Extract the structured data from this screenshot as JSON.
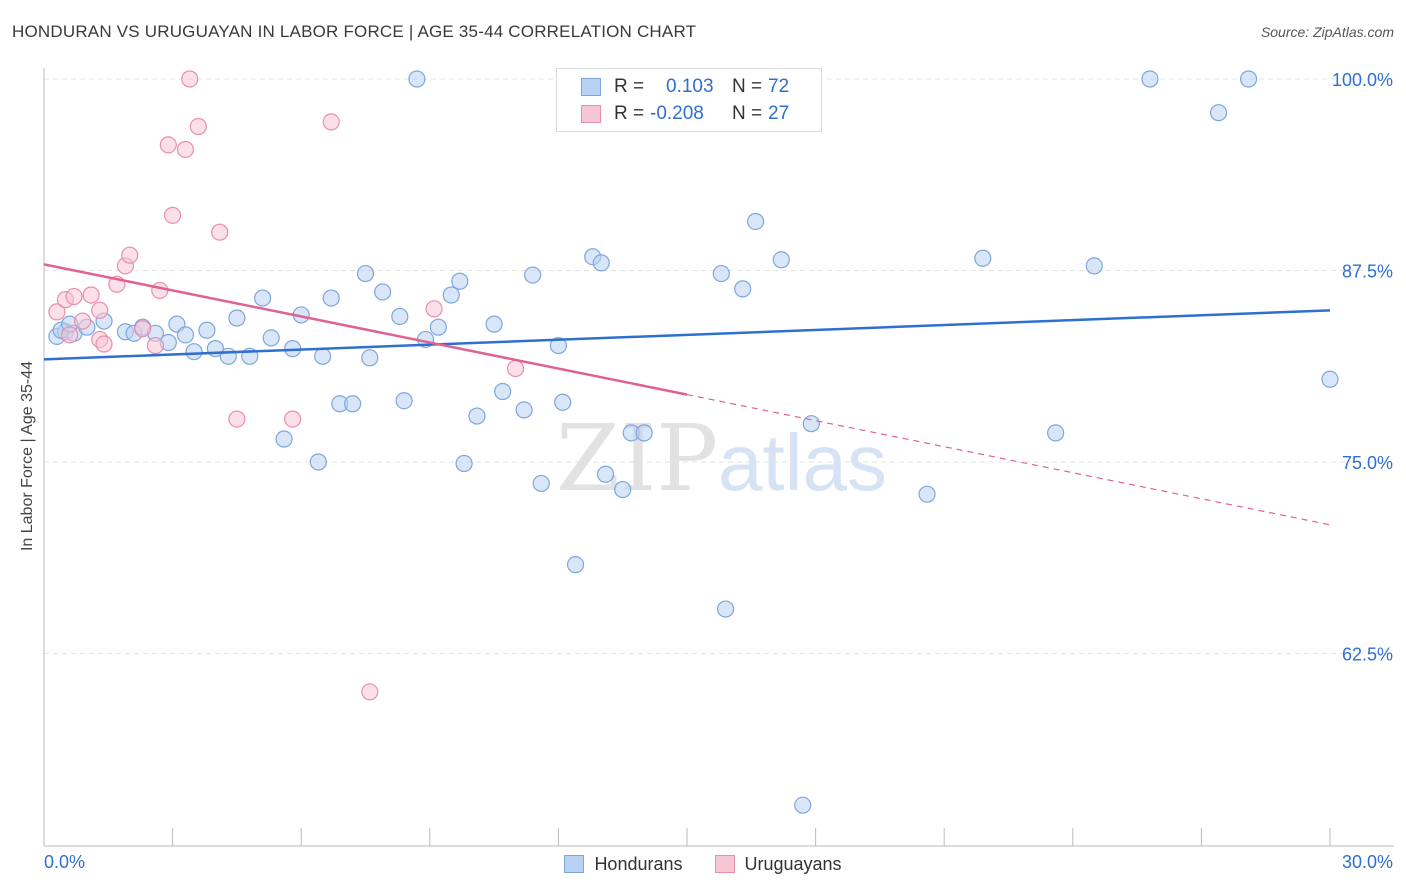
{
  "header": {
    "title": "HONDURAN VS URUGUAYAN IN LABOR FORCE | AGE 35-44 CORRELATION CHART",
    "source": "Source: ZipAtlas.com"
  },
  "watermark": {
    "zip": "ZIP",
    "atlas": "atlas"
  },
  "legend": {
    "rows": [
      {
        "r_label": "R =",
        "r_value": "0.103",
        "n_label": "N =",
        "n_value": "72"
      },
      {
        "r_label": "R =",
        "r_value": "-0.208",
        "n_label": "N =",
        "n_value": "27"
      }
    ]
  },
  "bottom_legend": [
    "Hondurans",
    "Uruguayans"
  ],
  "colors": {
    "blue_fill": "#b9d1f2",
    "blue_stroke": "#7ea6de",
    "blue_line": "#2f6fd0",
    "pink_fill": "#f7c6d5",
    "pink_stroke": "#e98fac",
    "pink_line": "#e0628f",
    "tick_label": "#2f6fd0",
    "grid": "#e3e3e3"
  },
  "chart_data": {
    "type": "scatter",
    "title": "HONDURAN VS URUGUAYAN IN LABOR FORCE | AGE 35-44 CORRELATION CHART",
    "xlabel": "",
    "ylabel": "In Labor Force | Age 35-44",
    "xlim": [
      0,
      30
    ],
    "ylim": [
      50,
      101
    ],
    "x_tick_labels": [
      "0.0%",
      "30.0%"
    ],
    "y_ticks": [
      {
        "value": 62.5,
        "label": "62.5%"
      },
      {
        "value": 75.0,
        "label": "75.0%"
      },
      {
        "value": 87.5,
        "label": "87.5%"
      },
      {
        "value": 100.0,
        "label": "100.0%"
      }
    ],
    "grid": "horizontal dashed",
    "legend_position": "top-center",
    "series": [
      {
        "name": "Hondurans",
        "color": "#b9d1f2",
        "trend": {
          "x": [
            0,
            30
          ],
          "y": [
            81.7,
            84.9
          ],
          "style": "solid"
        },
        "points": [
          [
            0.3,
            83.2
          ],
          [
            0.5,
            83.5
          ],
          [
            0.7,
            83.4
          ],
          [
            1.0,
            83.8
          ],
          [
            1.4,
            84.2
          ],
          [
            1.9,
            83.5
          ],
          [
            2.1,
            83.4
          ],
          [
            2.3,
            83.8
          ],
          [
            2.6,
            83.4
          ],
          [
            2.9,
            82.8
          ],
          [
            3.1,
            84.0
          ],
          [
            3.3,
            83.3
          ],
          [
            3.5,
            82.2
          ],
          [
            3.8,
            83.6
          ],
          [
            4.0,
            82.4
          ],
          [
            4.3,
            81.9
          ],
          [
            4.5,
            84.4
          ],
          [
            4.8,
            81.9
          ],
          [
            5.1,
            85.7
          ],
          [
            5.3,
            83.1
          ],
          [
            5.6,
            76.5
          ],
          [
            5.8,
            82.4
          ],
          [
            6.0,
            84.6
          ],
          [
            6.4,
            75.0
          ],
          [
            6.5,
            81.9
          ],
          [
            6.7,
            85.7
          ],
          [
            6.9,
            78.8
          ],
          [
            7.2,
            78.8
          ],
          [
            7.5,
            87.3
          ],
          [
            7.6,
            81.8
          ],
          [
            7.9,
            86.1
          ],
          [
            8.3,
            84.5
          ],
          [
            8.4,
            79.0
          ],
          [
            8.7,
            100.0
          ],
          [
            8.9,
            83.0
          ],
          [
            9.2,
            83.8
          ],
          [
            9.5,
            85.9
          ],
          [
            9.7,
            86.8
          ],
          [
            9.8,
            74.9
          ],
          [
            10.1,
            78.0
          ],
          [
            10.5,
            84.0
          ],
          [
            10.7,
            79.6
          ],
          [
            11.2,
            78.4
          ],
          [
            11.4,
            87.2
          ],
          [
            11.6,
            73.6
          ],
          [
            12.0,
            82.6
          ],
          [
            12.1,
            78.9
          ],
          [
            12.4,
            68.3
          ],
          [
            12.8,
            88.4
          ],
          [
            13.0,
            88.0
          ],
          [
            13.1,
            74.2
          ],
          [
            13.5,
            73.2
          ],
          [
            13.7,
            76.9
          ],
          [
            14.0,
            76.9
          ],
          [
            14.9,
            100.0
          ],
          [
            15.8,
            87.3
          ],
          [
            15.9,
            65.4
          ],
          [
            16.3,
            86.3
          ],
          [
            16.6,
            90.7
          ],
          [
            17.2,
            88.2
          ],
          [
            17.7,
            52.6
          ],
          [
            17.9,
            77.5
          ],
          [
            20.6,
            72.9
          ],
          [
            21.9,
            88.3
          ],
          [
            23.6,
            76.9
          ],
          [
            24.5,
            87.8
          ],
          [
            25.8,
            100.0
          ],
          [
            27.4,
            97.8
          ],
          [
            28.1,
            100.0
          ],
          [
            30.0,
            80.4
          ],
          [
            0.4,
            83.6
          ],
          [
            0.6,
            84.0
          ]
        ]
      },
      {
        "name": "Uruguayans",
        "color": "#f7c6d5",
        "trend": {
          "x": [
            0,
            15.0,
            30
          ],
          "y": [
            87.9,
            79.4,
            70.9
          ],
          "style": "solid to 15.0 then dashed"
        },
        "points": [
          [
            0.3,
            84.8
          ],
          [
            0.5,
            85.6
          ],
          [
            0.7,
            85.8
          ],
          [
            0.9,
            84.2
          ],
          [
            1.1,
            85.9
          ],
          [
            1.3,
            83.0
          ],
          [
            1.3,
            84.9
          ],
          [
            1.4,
            82.7
          ],
          [
            1.7,
            86.6
          ],
          [
            1.9,
            87.8
          ],
          [
            2.0,
            88.5
          ],
          [
            2.3,
            83.7
          ],
          [
            2.6,
            82.6
          ],
          [
            2.7,
            86.2
          ],
          [
            2.9,
            95.7
          ],
          [
            3.0,
            91.1
          ],
          [
            3.3,
            95.4
          ],
          [
            3.4,
            100.0
          ],
          [
            3.6,
            96.9
          ],
          [
            4.1,
            90.0
          ],
          [
            4.5,
            77.8
          ],
          [
            5.8,
            77.8
          ],
          [
            6.7,
            97.2
          ],
          [
            7.6,
            60.0
          ],
          [
            9.1,
            85.0
          ],
          [
            11.0,
            81.1
          ],
          [
            0.6,
            83.3
          ]
        ]
      }
    ]
  }
}
